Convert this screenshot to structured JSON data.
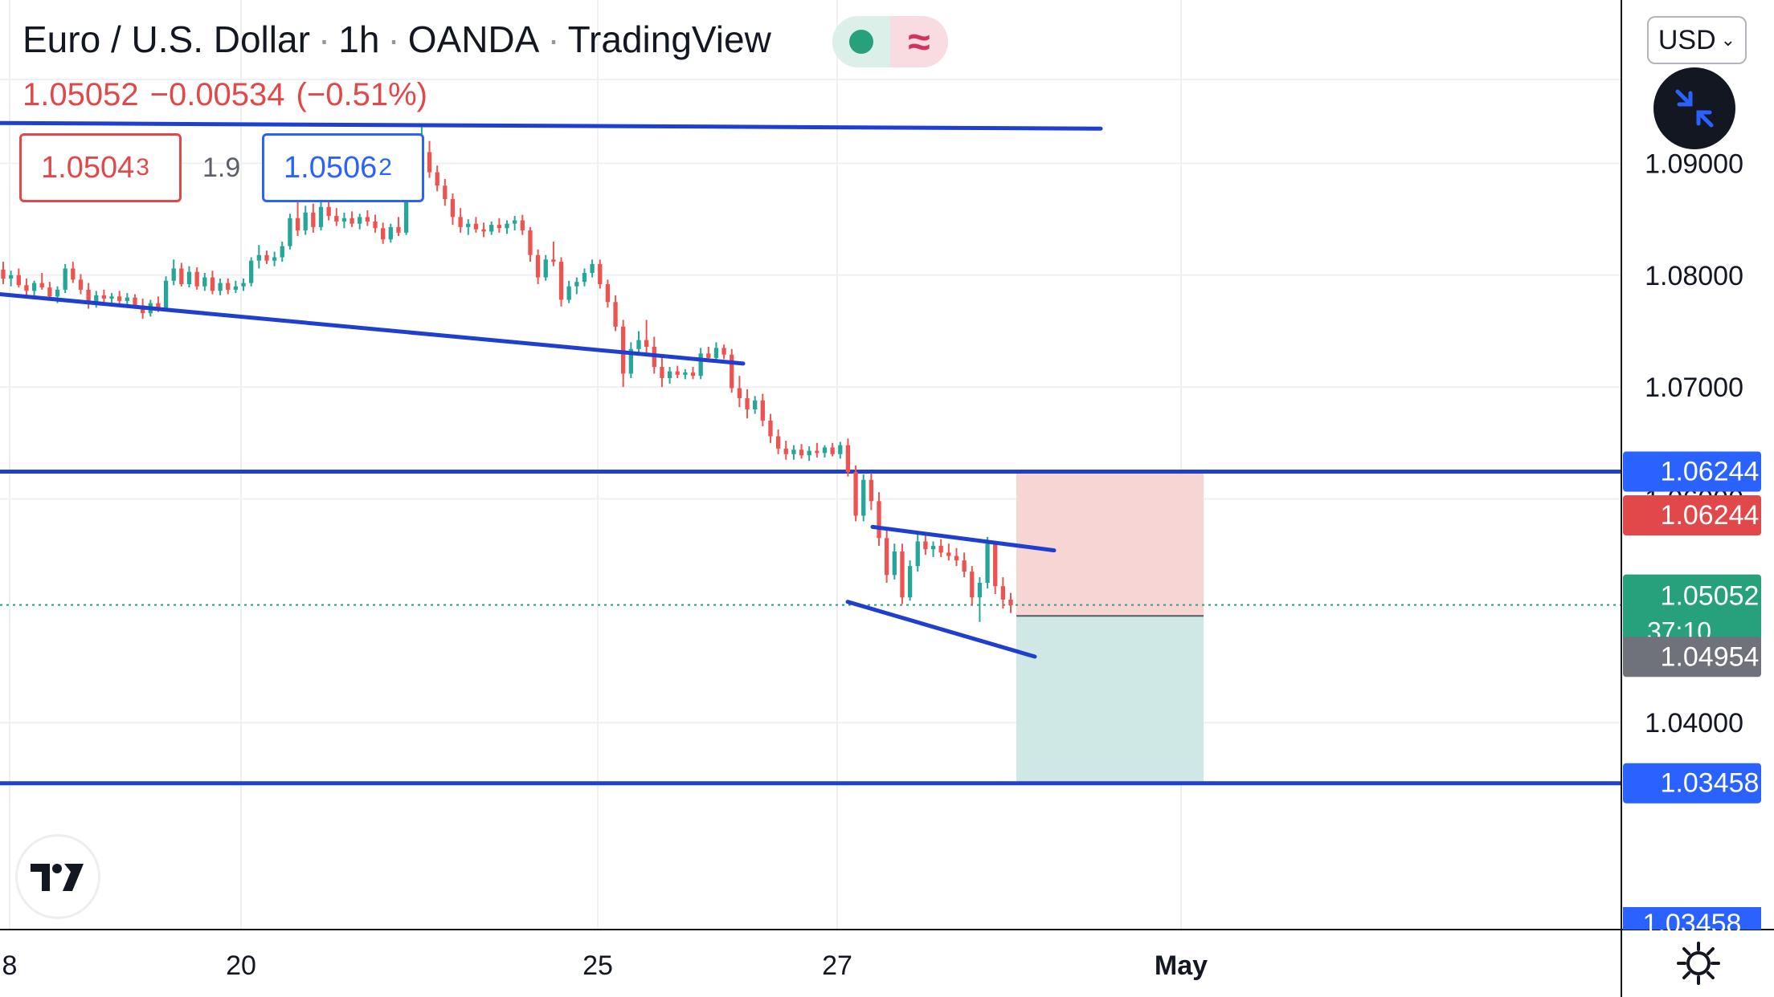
{
  "header": {
    "symbol": "Euro / U.S. Dollar",
    "interval": "1h",
    "broker": "OANDA",
    "platform": "TradingView",
    "sep": "·"
  },
  "quote": {
    "last": "1.05052",
    "change": "−0.00534",
    "change_pct": "(−0.51%)"
  },
  "market_status": {
    "open_icon": "green-dot-icon",
    "wave_icon": "≈"
  },
  "order": {
    "bid": "1.0504",
    "bid_sup": "3",
    "spread": "1.9",
    "ask": "1.0506",
    "ask_sup": "2"
  },
  "currency_button": "USD",
  "colors": {
    "up": "#26a69a",
    "down": "#ef5350",
    "drawing": "#1e3fcf",
    "label_blue": "#2962ff",
    "stop_zone": "#f7d5d5",
    "target_zone": "#cfe8e5",
    "grid": "#eef0f4"
  },
  "chart_data": {
    "type": "candlestick",
    "symbol": "EURUSD",
    "interval": "1h",
    "ylim": [
      1.0215,
      1.1046
    ],
    "y_ticks": [
      "1.09000",
      "1.08000",
      "1.07000",
      "1.06000",
      "1.04000"
    ],
    "x_ticks": [
      "8",
      "20",
      "25",
      "27",
      "May"
    ],
    "price_labels": [
      {
        "value": "1.06244",
        "kind": "alert",
        "color": "#e0484a"
      },
      {
        "value": "1.06244",
        "kind": "line",
        "color": "#2962ff"
      },
      {
        "value": "1.05052",
        "sub": "37:10",
        "kind": "last",
        "color": "#26a17b"
      },
      {
        "value": "1.04954",
        "kind": "entry",
        "color": "#6f727b"
      },
      {
        "value": "1.03458",
        "kind": "line",
        "color": "#2962ff"
      },
      {
        "value": "1.03458",
        "kind": "partial",
        "color": "#2962ff"
      }
    ],
    "horizontal_lines": [
      1.06244,
      1.03458
    ],
    "last_price": 1.05052,
    "trendlines": [
      {
        "name": "top",
        "from": [
          0,
          1.0936
        ],
        "to": [
          1370,
          1.0931
        ]
      },
      {
        "name": "support",
        "from": [
          0,
          1.0783
        ],
        "to": [
          925,
          1.0721
        ]
      },
      {
        "name": "wedge-upper",
        "from": [
          1086,
          1.0575
        ],
        "to": [
          1312,
          1.0554
        ]
      },
      {
        "name": "wedge-lower",
        "from": [
          1055,
          1.0508
        ],
        "to": [
          1288,
          1.0459
        ]
      }
    ],
    "short_position": {
      "entry": 1.04954,
      "stop": 1.06244,
      "target": 1.03458
    },
    "candles": [
      [
        1.0805,
        1.0812,
        1.0792,
        1.0797
      ],
      [
        1.0797,
        1.0804,
        1.079,
        1.08
      ],
      [
        1.08,
        1.0806,
        1.0789,
        1.0791
      ],
      [
        1.0791,
        1.0797,
        1.0781,
        1.0786
      ],
      [
        1.0786,
        1.0795,
        1.078,
        1.0793
      ],
      [
        1.0793,
        1.0802,
        1.0787,
        1.0789
      ],
      [
        1.0789,
        1.0794,
        1.0778,
        1.0781
      ],
      [
        1.0781,
        1.079,
        1.0775,
        1.0787
      ],
      [
        1.0787,
        1.081,
        1.0784,
        1.0806
      ],
      [
        1.0806,
        1.0812,
        1.0793,
        1.0796
      ],
      [
        1.0796,
        1.0801,
        1.0783,
        1.0787
      ],
      [
        1.0787,
        1.0793,
        1.077,
        1.0775
      ],
      [
        1.0775,
        1.0786,
        1.0771,
        1.0782
      ],
      [
        1.0782,
        1.0787,
        1.0776,
        1.0779
      ],
      [
        1.0779,
        1.0784,
        1.0773,
        1.0781
      ],
      [
        1.0781,
        1.0786,
        1.0774,
        1.0777
      ],
      [
        1.0777,
        1.0784,
        1.0772,
        1.078
      ],
      [
        1.078,
        1.0783,
        1.077,
        1.0773
      ],
      [
        1.0773,
        1.0779,
        1.0761,
        1.0766
      ],
      [
        1.0766,
        1.0778,
        1.0763,
        1.0775
      ],
      [
        1.0775,
        1.0781,
        1.0767,
        1.077
      ],
      [
        1.077,
        1.0799,
        1.0768,
        1.0795
      ],
      [
        1.0795,
        1.0814,
        1.0791,
        1.0806
      ],
      [
        1.0806,
        1.0811,
        1.079,
        1.0792
      ],
      [
        1.0792,
        1.0808,
        1.0789,
        1.0803
      ],
      [
        1.0803,
        1.0807,
        1.0787,
        1.079
      ],
      [
        1.079,
        1.0802,
        1.0786,
        1.0798
      ],
      [
        1.0798,
        1.0804,
        1.0783,
        1.0786
      ],
      [
        1.0786,
        1.0797,
        1.0782,
        1.0793
      ],
      [
        1.0793,
        1.0797,
        1.0783,
        1.0787
      ],
      [
        1.0787,
        1.0795,
        1.0784,
        1.079
      ],
      [
        1.079,
        1.0797,
        1.0786,
        1.0793
      ],
      [
        1.0793,
        1.0816,
        1.079,
        1.0813
      ],
      [
        1.0813,
        1.0827,
        1.0806,
        1.0818
      ],
      [
        1.0818,
        1.0822,
        1.081,
        1.0813
      ],
      [
        1.0813,
        1.0821,
        1.0808,
        1.0816
      ],
      [
        1.0816,
        1.083,
        1.0812,
        1.0826
      ],
      [
        1.0826,
        1.0855,
        1.0823,
        1.0851
      ],
      [
        1.0851,
        1.0866,
        1.0835,
        1.084
      ],
      [
        1.084,
        1.0862,
        1.0836,
        1.0856
      ],
      [
        1.0856,
        1.0864,
        1.0838,
        1.0843
      ],
      [
        1.0843,
        1.0866,
        1.084,
        1.0861
      ],
      [
        1.0861,
        1.0868,
        1.0849,
        1.0853
      ],
      [
        1.0853,
        1.086,
        1.0844,
        1.0848
      ],
      [
        1.0848,
        1.0856,
        1.0842,
        1.0851
      ],
      [
        1.0851,
        1.0857,
        1.0843,
        1.0846
      ],
      [
        1.0846,
        1.0855,
        1.0841,
        1.0852
      ],
      [
        1.0852,
        1.0858,
        1.0844,
        1.0848
      ],
      [
        1.0848,
        1.0854,
        1.0838,
        1.0842
      ],
      [
        1.0842,
        1.0847,
        1.0828,
        1.0832
      ],
      [
        1.0832,
        1.0846,
        1.0829,
        1.0843
      ],
      [
        1.0843,
        1.0852,
        1.0835,
        1.0838
      ],
      [
        1.0838,
        1.089,
        1.0836,
        1.0885
      ],
      [
        1.0885,
        1.091,
        1.0878,
        1.0902
      ],
      [
        1.0902,
        1.0935,
        1.0897,
        1.091
      ],
      [
        1.091,
        1.092,
        1.0887,
        1.0892
      ],
      [
        1.0892,
        1.0898,
        1.0875,
        1.088
      ],
      [
        1.088,
        1.0886,
        1.0862,
        1.0868
      ],
      [
        1.0868,
        1.0873,
        1.0845,
        1.0852
      ],
      [
        1.0852,
        1.086,
        1.0838,
        1.0843
      ],
      [
        1.0843,
        1.085,
        1.0836,
        1.0846
      ],
      [
        1.0846,
        1.0852,
        1.0838,
        1.0841
      ],
      [
        1.0841,
        1.0847,
        1.0834,
        1.0839
      ],
      [
        1.0839,
        1.0848,
        1.0836,
        1.0845
      ],
      [
        1.0845,
        1.0851,
        1.0838,
        1.0842
      ],
      [
        1.0842,
        1.0849,
        1.0837,
        1.0846
      ],
      [
        1.0846,
        1.0853,
        1.084,
        1.0849
      ],
      [
        1.0849,
        1.0854,
        1.0836,
        1.084
      ],
      [
        1.084,
        1.0843,
        1.0812,
        1.0818
      ],
      [
        1.0818,
        1.0823,
        1.0792,
        1.0798
      ],
      [
        1.0798,
        1.0818,
        1.0795,
        1.0814
      ],
      [
        1.0814,
        1.083,
        1.0808,
        1.0812
      ],
      [
        1.0812,
        1.0816,
        1.0772,
        1.0778
      ],
      [
        1.0778,
        1.0795,
        1.0775,
        1.079
      ],
      [
        1.079,
        1.0798,
        1.0783,
        1.0794
      ],
      [
        1.0794,
        1.0806,
        1.079,
        1.0802
      ],
      [
        1.0802,
        1.0814,
        1.0798,
        1.081
      ],
      [
        1.081,
        1.0814,
        1.0788,
        1.0792
      ],
      [
        1.0792,
        1.0796,
        1.0771,
        1.0776
      ],
      [
        1.0776,
        1.0782,
        1.075,
        1.0754
      ],
      [
        1.0754,
        1.076,
        1.07,
        1.0712
      ],
      [
        1.0712,
        1.074,
        1.0708,
        1.0734
      ],
      [
        1.0734,
        1.075,
        1.0728,
        1.0742
      ],
      [
        1.0742,
        1.076,
        1.073,
        1.0736
      ],
      [
        1.0736,
        1.0745,
        1.0712,
        1.0718
      ],
      [
        1.0718,
        1.0728,
        1.07,
        1.0708
      ],
      [
        1.0708,
        1.0718,
        1.0703,
        1.0714
      ],
      [
        1.0714,
        1.0719,
        1.0708,
        1.0711
      ],
      [
        1.0711,
        1.0716,
        1.0707,
        1.0713
      ],
      [
        1.0713,
        1.0718,
        1.0707,
        1.071
      ],
      [
        1.071,
        1.0735,
        1.0707,
        1.073
      ],
      [
        1.073,
        1.0736,
        1.0722,
        1.0726
      ],
      [
        1.0726,
        1.074,
        1.0722,
        1.0735
      ],
      [
        1.0735,
        1.0738,
        1.0725,
        1.0729
      ],
      [
        1.0729,
        1.0734,
        1.0695,
        1.0699
      ],
      [
        1.0699,
        1.071,
        1.0682,
        1.069
      ],
      [
        1.069,
        1.0698,
        1.0672,
        1.068
      ],
      [
        1.068,
        1.0692,
        1.0676,
        1.0688
      ],
      [
        1.0688,
        1.0694,
        1.0665,
        1.067
      ],
      [
        1.067,
        1.0676,
        1.065,
        1.0656
      ],
      [
        1.0656,
        1.0662,
        1.064,
        1.0645
      ],
      [
        1.0645,
        1.0652,
        1.0635,
        1.064
      ],
      [
        1.064,
        1.0648,
        1.0635,
        1.0644
      ],
      [
        1.0644,
        1.0649,
        1.0636,
        1.0639
      ],
      [
        1.0639,
        1.0647,
        1.0634,
        1.0643
      ],
      [
        1.0643,
        1.065,
        1.0637,
        1.0641
      ],
      [
        1.0641,
        1.0648,
        1.0637,
        1.0646
      ],
      [
        1.0646,
        1.065,
        1.0638,
        1.064
      ],
      [
        1.064,
        1.0651,
        1.0636,
        1.0648
      ],
      [
        1.0648,
        1.0654,
        1.062,
        1.0624
      ],
      [
        1.0624,
        1.063,
        1.058,
        1.0585
      ],
      [
        1.0585,
        1.0622,
        1.058,
        1.0617
      ],
      [
        1.0617,
        1.0623,
        1.059,
        1.0598
      ],
      [
        1.0598,
        1.0606,
        1.0558,
        1.0565
      ],
      [
        1.0565,
        1.0572,
        1.0525,
        1.0532
      ],
      [
        1.0532,
        1.056,
        1.0528,
        1.0553
      ],
      [
        1.0553,
        1.056,
        1.0506,
        1.0512
      ],
      [
        1.0512,
        1.0545,
        1.0509,
        1.054
      ],
      [
        1.054,
        1.057,
        1.0535,
        1.0562
      ],
      [
        1.0562,
        1.0568,
        1.055,
        1.0555
      ],
      [
        1.0555,
        1.0562,
        1.0548,
        1.0558
      ],
      [
        1.0558,
        1.0564,
        1.0548,
        1.0552
      ],
      [
        1.0552,
        1.056,
        1.0545,
        1.0549
      ],
      [
        1.0549,
        1.0556,
        1.054,
        1.0545
      ],
      [
        1.0545,
        1.0552,
        1.053,
        1.0535
      ],
      [
        1.0535,
        1.054,
        1.0505,
        1.0512
      ],
      [
        1.0512,
        1.053,
        1.049,
        1.0525
      ],
      [
        1.0525,
        1.0566,
        1.052,
        1.056
      ],
      [
        1.056,
        1.0562,
        1.0515,
        1.0522
      ],
      [
        1.0522,
        1.053,
        1.0502,
        1.051
      ],
      [
        1.051,
        1.0516,
        1.0498,
        1.0505
      ]
    ]
  }
}
